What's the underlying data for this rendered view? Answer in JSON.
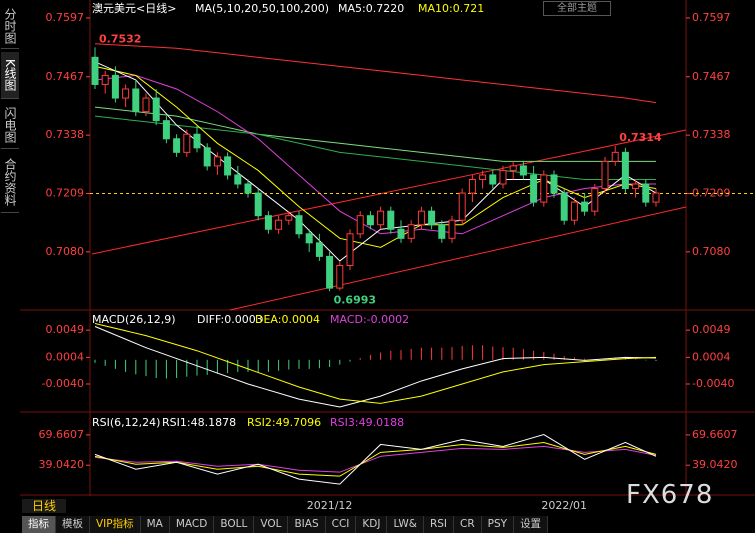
{
  "sidebar": [
    "分时图",
    "K线图",
    "闪电图",
    "合约资料"
  ],
  "theme_button": "全部主题",
  "period_button": "日线",
  "toolbar": [
    "指标",
    "模板",
    "VIP指标",
    "MA",
    "MACD",
    "BOLL",
    "VOL",
    "BIAS",
    "CCI",
    "KDJ",
    "LW&",
    "RSI",
    "CR",
    "PSY",
    "设置"
  ],
  "watermark": "FX678",
  "chart_data": [
    {
      "type": "candlestick",
      "title": "澳元美元<日线>",
      "legend": [
        "MA(5,10,20,50,100,200)",
        "MA5:0.7220",
        "MA10:0.721"
      ],
      "legend_colors": [
        "#ffffff",
        "#ffffff",
        "#ffff00"
      ],
      "categories": [
        null,
        null,
        null,
        null,
        null,
        null,
        null,
        null,
        null,
        null,
        null,
        null,
        null,
        null,
        null,
        null,
        null,
        null,
        null,
        null,
        null,
        null,
        null,
        "2021/12",
        null,
        null,
        null,
        null,
        null,
        null,
        null,
        null,
        null,
        null,
        null,
        null,
        null,
        null,
        null,
        null,
        null,
        null,
        null,
        null,
        null,
        null,
        "2022/01",
        null,
        null,
        null,
        null,
        null,
        null,
        null,
        null,
        null
      ],
      "open": [
        0.751,
        0.745,
        0.747,
        0.742,
        0.744,
        0.739,
        0.742,
        0.737,
        0.733,
        0.73,
        0.734,
        0.731,
        0.727,
        0.729,
        0.725,
        0.723,
        0.721,
        0.716,
        0.713,
        0.715,
        0.716,
        0.712,
        0.71,
        0.707,
        0.7,
        0.705,
        0.712,
        0.716,
        0.714,
        0.717,
        0.713,
        0.711,
        0.714,
        0.717,
        0.714,
        0.711,
        0.715,
        0.721,
        0.724,
        0.725,
        0.723,
        0.726,
        0.727,
        0.725,
        0.719,
        0.725,
        0.721,
        0.715,
        0.719,
        0.717,
        0.722,
        0.728,
        0.73,
        0.722,
        0.723,
        0.719
      ],
      "high": [
        0.7532,
        0.748,
        0.749,
        0.745,
        0.746,
        0.743,
        0.744,
        0.738,
        0.734,
        0.735,
        0.736,
        0.732,
        0.73,
        0.73,
        0.727,
        0.724,
        0.722,
        0.717,
        0.716,
        0.717,
        0.717,
        0.713,
        0.712,
        0.708,
        0.706,
        0.713,
        0.717,
        0.717,
        0.718,
        0.718,
        0.715,
        0.715,
        0.718,
        0.718,
        0.715,
        0.716,
        0.722,
        0.725,
        0.726,
        0.726,
        0.727,
        0.728,
        0.728,
        0.727,
        0.726,
        0.726,
        0.722,
        0.72,
        0.721,
        0.723,
        0.729,
        0.7314,
        0.731,
        0.724,
        0.724,
        0.722
      ],
      "low": [
        0.744,
        0.743,
        0.741,
        0.74,
        0.738,
        0.738,
        0.736,
        0.732,
        0.729,
        0.729,
        0.73,
        0.726,
        0.725,
        0.724,
        0.722,
        0.72,
        0.715,
        0.712,
        0.712,
        0.714,
        0.711,
        0.708,
        0.706,
        0.6993,
        0.6995,
        0.704,
        0.711,
        0.713,
        0.713,
        0.712,
        0.71,
        0.71,
        0.713,
        0.713,
        0.71,
        0.71,
        0.714,
        0.719,
        0.722,
        0.722,
        0.722,
        0.724,
        0.724,
        0.718,
        0.718,
        0.72,
        0.714,
        0.714,
        0.716,
        0.716,
        0.721,
        0.727,
        0.721,
        0.72,
        0.718,
        0.718
      ],
      "close": [
        0.745,
        0.747,
        0.742,
        0.744,
        0.739,
        0.742,
        0.737,
        0.733,
        0.73,
        0.734,
        0.731,
        0.727,
        0.729,
        0.725,
        0.723,
        0.721,
        0.716,
        0.713,
        0.715,
        0.716,
        0.712,
        0.71,
        0.707,
        0.7,
        0.705,
        0.712,
        0.716,
        0.714,
        0.717,
        0.713,
        0.711,
        0.714,
        0.717,
        0.714,
        0.711,
        0.715,
        0.721,
        0.724,
        0.725,
        0.723,
        0.726,
        0.727,
        0.725,
        0.719,
        0.725,
        0.721,
        0.715,
        0.719,
        0.717,
        0.722,
        0.728,
        0.73,
        0.722,
        0.723,
        0.719,
        0.721
      ],
      "up_color": "#ff3b3b",
      "down_color": "#3fd17f",
      "ylim": [
        0.6956,
        0.7619
      ],
      "yticks": [
        0.7597,
        0.7467,
        0.7338,
        0.7209,
        {
          "value": 0.708,
          "label": "0.7080"
        }
      ],
      "annotations": [
        0.7532,
        0.6993,
        0.7314
      ],
      "price_line": 0.7209,
      "overlays": [
        {
          "color": "#ff3030",
          "x": [
            0,
            4,
            8,
            12,
            16,
            20,
            24,
            28,
            32,
            36,
            40,
            44,
            48,
            52,
            55
          ],
          "values": [
            0.754,
            0.7535,
            0.753,
            0.752,
            0.751,
            0.75,
            0.749,
            0.748,
            0.747,
            0.746,
            0.745,
            0.744,
            0.743,
            0.742,
            0.741
          ]
        },
        {
          "color": "#7fdc7f",
          "x": [
            0,
            4,
            8,
            12,
            16,
            20,
            24,
            28,
            32,
            36,
            40,
            44,
            48,
            52,
            55
          ],
          "values": [
            0.74,
            0.739,
            0.738,
            0.736,
            0.734,
            0.733,
            0.732,
            0.731,
            0.73,
            0.729,
            0.728,
            0.728,
            0.728,
            0.728,
            0.728
          ]
        },
        {
          "color": "#2fae4f",
          "x": [
            0,
            4,
            8,
            12,
            16,
            20,
            24,
            28,
            32,
            36,
            40,
            44,
            48,
            52,
            55
          ],
          "values": [
            0.738,
            0.737,
            0.736,
            0.735,
            0.734,
            0.732,
            0.73,
            0.729,
            0.728,
            0.727,
            0.726,
            0.725,
            0.724,
            0.724,
            0.724
          ]
        },
        {
          "color": "#e040e0",
          "x": [
            0,
            4,
            8,
            12,
            16,
            20,
            24,
            28,
            32,
            36,
            40,
            44,
            48,
            52,
            55
          ],
          "values": [
            0.746,
            0.747,
            0.744,
            0.739,
            0.733,
            0.725,
            0.717,
            0.712,
            0.713,
            0.712,
            0.716,
            0.72,
            0.722,
            0.723,
            0.723
          ]
        },
        {
          "color": "#ffff00",
          "x": [
            0,
            4,
            8,
            12,
            16,
            20,
            24,
            28,
            32,
            36,
            40,
            44,
            48,
            52,
            55
          ],
          "values": [
            0.749,
            0.747,
            0.74,
            0.732,
            0.726,
            0.718,
            0.711,
            0.709,
            0.714,
            0.714,
            0.72,
            0.724,
            0.72,
            0.723,
            0.722
          ]
        },
        {
          "color": "#ffffff",
          "x": [
            0,
            4,
            8,
            12,
            16,
            20,
            24,
            28,
            32,
            36,
            40,
            44,
            48,
            52,
            55
          ],
          "values": [
            0.75,
            0.746,
            0.736,
            0.729,
            0.722,
            0.715,
            0.706,
            0.713,
            0.714,
            0.715,
            0.724,
            0.724,
            0.718,
            0.725,
            0.721
          ]
        }
      ]
    },
    {
      "type": "macd",
      "title": "MACD(26,12,9)",
      "legend": [
        "DIFF:0.0003",
        "DEA:0.0004",
        "MACD:-0.0002"
      ],
      "legend_colors": [
        "#ffffff",
        "#ffff00",
        "#e040e0"
      ],
      "values": [
        -0.0005,
        -0.001,
        -0.0015,
        -0.002,
        -0.0024,
        -0.0027,
        -0.003,
        -0.0031,
        -0.003,
        -0.0028,
        -0.0026,
        -0.0025,
        -0.0023,
        -0.0022,
        -0.002,
        -0.002,
        -0.0021,
        -0.002,
        -0.0018,
        -0.0016,
        -0.0015,
        -0.0015,
        -0.0014,
        -0.0012,
        -0.0008,
        -0.0003,
        0.0003,
        0.0008,
        0.0012,
        0.0015,
        0.0016,
        0.0018,
        0.002,
        0.002,
        0.002,
        0.0021,
        0.0023,
        0.0024,
        0.0024,
        0.0022,
        0.0021,
        0.002,
        0.0018,
        0.0015,
        0.0013,
        0.001,
        0.0006,
        0.0004,
        0.0002,
        0.0001,
        0.0002,
        0.0004,
        0.0002,
        0.0001,
        -0.0001,
        -0.0002
      ],
      "up_color": "#ff3b3b",
      "down_color": "#3fd17f",
      "ylim": [
        -0.0083,
        0.0079
      ],
      "yticks": [
        0.0049,
        0.0004,
        {
          "value": -0.004,
          "label": "-0.0040"
        }
      ],
      "overlays": [
        {
          "color": "#ffffff",
          "x": [
            0,
            5,
            10,
            15,
            20,
            24,
            28,
            32,
            36,
            40,
            44,
            48,
            52,
            55
          ],
          "values": [
            0.0055,
            0.002,
            -0.001,
            -0.004,
            -0.0065,
            -0.0078,
            -0.006,
            -0.0035,
            -0.0015,
            0.0002,
            0.0004,
            -0.0001,
            0.0004,
            0.0003
          ]
        },
        {
          "color": "#ffff00",
          "x": [
            0,
            5,
            10,
            15,
            20,
            24,
            28,
            32,
            36,
            40,
            44,
            48,
            52,
            55
          ],
          "values": [
            0.006,
            0.004,
            0.0015,
            -0.0015,
            -0.0045,
            -0.0065,
            -0.0072,
            -0.006,
            -0.004,
            -0.002,
            -0.0008,
            -0.0003,
            0.0002,
            0.0004
          ]
        }
      ]
    },
    {
      "type": "rsi",
      "title": "RSI(6,12,24)",
      "legend": [
        "RSI1:48.1878",
        "RSI2:49.7096",
        "RSI3:49.0188"
      ],
      "legend_colors": [
        "#ffffff",
        "#ffff00",
        "#e040e0"
      ],
      "ylim": [
        14.0,
        84.7
      ],
      "yticks": [
        69.6607,
        {
          "value": 39.042,
          "label": "39.0420"
        }
      ],
      "overlays": [
        {
          "color": "#e040e0",
          "x": [
            0,
            4,
            8,
            12,
            16,
            20,
            24,
            28,
            32,
            36,
            40,
            44,
            48,
            52,
            55
          ],
          "values": [
            47,
            42,
            43,
            38,
            40,
            34,
            32,
            48,
            52,
            56,
            55,
            58,
            52,
            55,
            49
          ]
        },
        {
          "color": "#ffff00",
          "x": [
            0,
            4,
            8,
            12,
            16,
            20,
            24,
            28,
            32,
            36,
            40,
            44,
            48,
            52,
            55
          ],
          "values": [
            48,
            40,
            42,
            35,
            38,
            30,
            28,
            52,
            55,
            60,
            57,
            62,
            50,
            58,
            50
          ]
        },
        {
          "color": "#ffffff",
          "x": [
            0,
            4,
            8,
            12,
            16,
            20,
            24,
            28,
            32,
            36,
            40,
            44,
            48,
            52,
            55
          ],
          "values": [
            50,
            35,
            42,
            30,
            40,
            25,
            20,
            60,
            55,
            65,
            58,
            70,
            45,
            62,
            48
          ]
        }
      ]
    }
  ]
}
